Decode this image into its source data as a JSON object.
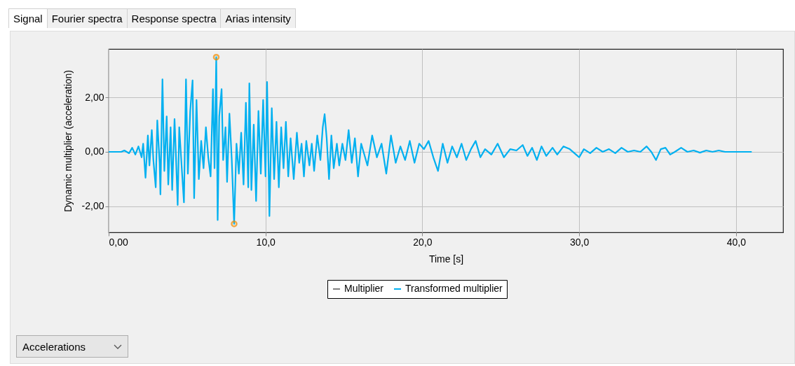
{
  "chart_data": {
    "type": "line",
    "xlabel": "Time [s]",
    "ylabel": "Dynamic multiplier (acceleration)",
    "annotations": [
      "Signal",
      "Fourier spectra",
      "Response spectra",
      "Arias intensity",
      "Accelerations"
    ],
    "xlim": [
      0,
      43
    ],
    "xticks": [
      {
        "value": 0,
        "label": "0,00"
      },
      {
        "value": 10,
        "label": "10,0"
      },
      {
        "value": 20,
        "label": "20,0"
      },
      {
        "value": 30,
        "label": "30,0"
      },
      {
        "value": 40,
        "label": "40,0"
      }
    ],
    "ylim": [
      -2.95,
      3.77
    ],
    "yticks": [
      {
        "value": -2,
        "label": "-2,00"
      },
      {
        "value": 0,
        "label": "0,00"
      },
      {
        "value": 2,
        "label": "2,00"
      }
    ],
    "grid": true,
    "legend": "bottom",
    "line_style": "solid",
    "series": [
      {
        "name": "Multiplier",
        "color": "#808080"
      },
      {
        "name": "Transformed multiplier",
        "color": "#00b0f0",
        "x": [
          0,
          0.8,
          1.0,
          1.3,
          1.5,
          1.7,
          1.9,
          2.1,
          2.2,
          2.35,
          2.5,
          2.6,
          2.75,
          2.85,
          3.0,
          3.1,
          3.25,
          3.3,
          3.43,
          3.55,
          3.7,
          3.8,
          3.95,
          4.05,
          4.2,
          4.3,
          4.4,
          4.5,
          4.65,
          4.8,
          4.93,
          5.05,
          5.2,
          5.35,
          5.45,
          5.6,
          5.75,
          5.9,
          6.05,
          6.2,
          6.35,
          6.5,
          6.65,
          6.75,
          6.86,
          6.95,
          7.05,
          7.2,
          7.3,
          7.45,
          7.55,
          7.7,
          7.85,
          8.0,
          8.15,
          8.3,
          8.45,
          8.6,
          8.75,
          8.9,
          8.97,
          9.1,
          9.25,
          9.4,
          9.55,
          9.7,
          9.85,
          10.0,
          10.1,
          10.25,
          10.4,
          10.55,
          10.7,
          10.85,
          11.0,
          11.15,
          11.3,
          11.45,
          11.6,
          11.8,
          12.0,
          12.15,
          12.3,
          12.45,
          12.6,
          12.8,
          12.95,
          13.1,
          13.3,
          13.5,
          13.65,
          13.77,
          13.9,
          14.05,
          14.2,
          14.35,
          14.55,
          14.7,
          14.9,
          15.1,
          15.3,
          15.5,
          15.7,
          15.9,
          16.1,
          16.5,
          16.8,
          17.1,
          17.4,
          17.7,
          18.0,
          18.3,
          18.6,
          18.9,
          19.2,
          19.5,
          19.8,
          20.1,
          20.4,
          20.7,
          21.0,
          21.3,
          21.6,
          21.9,
          22.2,
          22.5,
          22.8,
          23.1,
          23.4,
          23.7,
          24.0,
          24.4,
          24.8,
          25.2,
          25.6,
          26.0,
          26.4,
          26.7,
          27.0,
          27.3,
          27.6,
          27.9,
          28.3,
          28.6,
          29.0,
          29.4,
          29.8,
          30.0,
          30.3,
          30.7,
          31.1,
          31.5,
          31.9,
          32.3,
          32.7,
          33.1,
          33.5,
          33.9,
          34.3,
          34.6,
          34.9,
          35.2,
          35.5,
          35.8,
          36.1,
          36.5,
          36.9,
          37.3,
          37.7,
          38.1,
          38.5,
          38.9,
          39.3,
          40.0,
          41.0
        ],
        "values": [
          0,
          0,
          0.05,
          -0.05,
          0.15,
          -0.1,
          0.2,
          -0.2,
          0.3,
          -0.95,
          0.6,
          -0.5,
          0.8,
          -0.3,
          -1.3,
          1.15,
          -0.4,
          -1.56,
          2.66,
          -0.7,
          1.3,
          -1.2,
          0.9,
          -1.4,
          1.2,
          -0.3,
          -1.95,
          0.9,
          -0.5,
          -1.85,
          2.66,
          -0.8,
          1.5,
          2.62,
          -1.7,
          1.9,
          -1.0,
          0.4,
          -0.6,
          0.9,
          -0.2,
          -0.9,
          2.3,
          -0.6,
          3.47,
          -2.5,
          1.3,
          2.3,
          -0.3,
          0.9,
          -1.1,
          1.4,
          -0.3,
          -2.64,
          0.3,
          -0.8,
          0.7,
          -1.2,
          1.8,
          -1.3,
          2.51,
          -1.4,
          1.0,
          -1.8,
          1.5,
          -0.8,
          1.9,
          -0.9,
          2.56,
          -2.35,
          1.6,
          -1.0,
          1.1,
          -1.3,
          0.9,
          -0.6,
          1.1,
          -0.9,
          0.5,
          -1.0,
          0.7,
          -0.4,
          0.3,
          -0.9,
          0.4,
          -0.5,
          0.3,
          -0.7,
          0.6,
          -0.3,
          0.9,
          1.38,
          0.5,
          -1.0,
          0.6,
          -0.6,
          0.3,
          -0.5,
          0.3,
          -0.3,
          0.8,
          -0.4,
          0.5,
          -0.9,
          0.3,
          -0.5,
          0.6,
          -0.2,
          0.3,
          -0.8,
          0.6,
          -0.4,
          0.2,
          -0.3,
          0.4,
          -0.4,
          0.3,
          0.1,
          0.4,
          -0.2,
          -0.7,
          0.3,
          -0.4,
          0.2,
          -0.2,
          0.3,
          -0.3,
          0.1,
          0.4,
          -0.2,
          0.1,
          -0.1,
          0.3,
          -0.2,
          0.1,
          0.05,
          0.25,
          -0.15,
          0.15,
          -0.3,
          0.2,
          -0.15,
          0.15,
          -0.1,
          0.2,
          0.1,
          -0.1,
          -0.2,
          0.1,
          -0.05,
          0.15,
          0,
          0.1,
          -0.05,
          0.15,
          0,
          0.05,
          0,
          0.2,
          0,
          -0.3,
          0.1,
          0.15,
          -0.1,
          0,
          0.15,
          0,
          0.05,
          -0.03,
          0.05,
          0,
          0.05,
          0,
          0,
          0
        ]
      },
      {
        "type": "scatter",
        "marker": "circle",
        "color": "#f08c00",
        "x": [
          6.86,
          8.0
        ],
        "values": [
          3.47,
          -2.64
        ]
      }
    ]
  }
}
